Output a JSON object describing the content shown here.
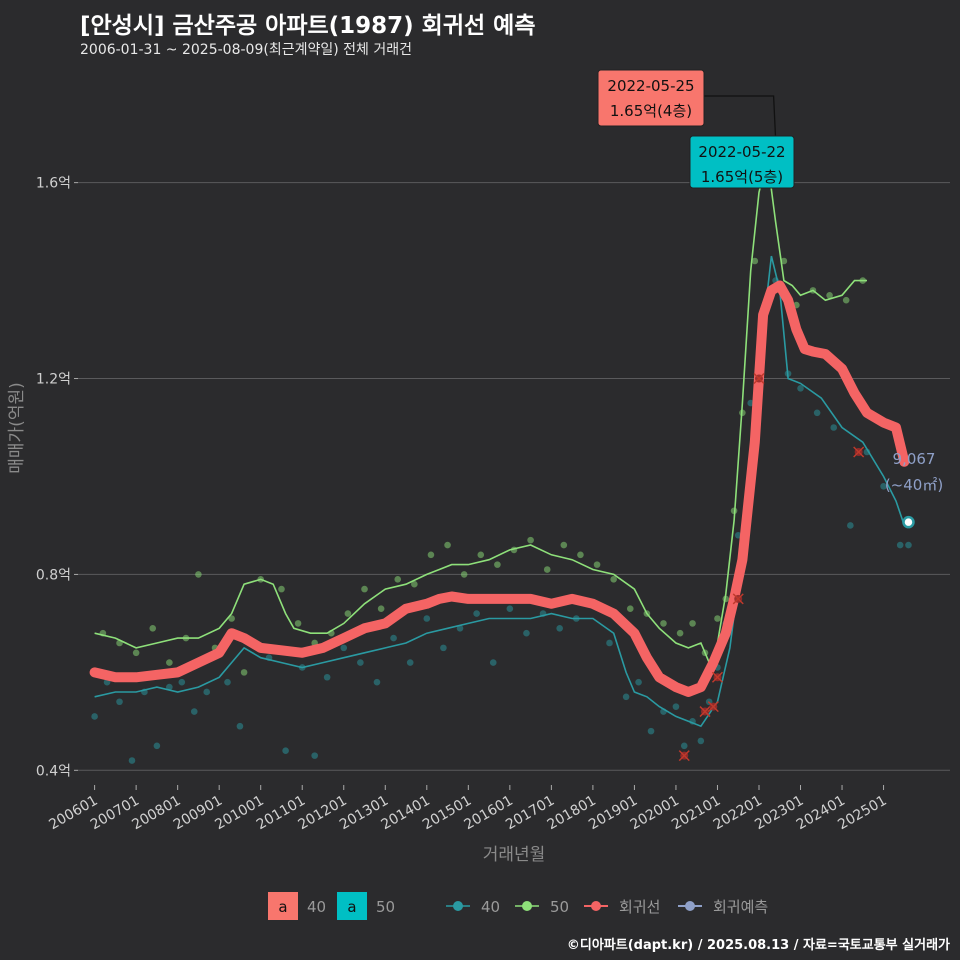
{
  "header": {
    "title": "[안성시] 금산주공 아파트(1987) 회귀선 예측",
    "subtitle": "2006-01-31 ~ 2025-08-09(최근계약일) 전체 거래건"
  },
  "caption": "©디아파트(dapt.kr) / 2025.08.13 / 자료=국토교통부 실거래가",
  "colors": {
    "background": "#2b2b2d",
    "grid": "#5a5a5c",
    "s40": "#2a9aa2",
    "s50": "#8ee07a",
    "regression": "#f46464",
    "forecast": "#8fa0c8",
    "ann40": "#f8766d",
    "ann50": "#00bfc4"
  },
  "chart_data": {
    "type": "line",
    "title": "[안성시] 금산주공 아파트(1987) 회귀선 예측",
    "xlabel": "거래년월",
    "ylabel": "매매가(억원)",
    "ylim": [
      0.37,
      1.83
    ],
    "x_range": [
      2005.6,
      2026.6
    ],
    "y_ticks": [
      0.4,
      0.8,
      1.2,
      1.6
    ],
    "y_tick_labels": [
      "0.4억",
      "0.8억",
      "1.2억",
      "1.6억"
    ],
    "x_tick_values": [
      2006,
      2007,
      2008,
      2009,
      2010,
      2011,
      2012,
      2013,
      2014,
      2015,
      2016,
      2017,
      2018,
      2019,
      2020,
      2021,
      2022,
      2023,
      2024,
      2025
    ],
    "x_tick_labels": [
      "200601",
      "200701",
      "200801",
      "200901",
      "201001",
      "201101",
      "201201",
      "201301",
      "201401",
      "201501",
      "201601",
      "201701",
      "201801",
      "201901",
      "202001",
      "202101",
      "202201",
      "202301",
      "202401",
      "202501"
    ],
    "series": [
      {
        "name": "50",
        "x": [
          2006.0,
          2006.5,
          2007.0,
          2007.5,
          2008.0,
          2008.5,
          2009.0,
          2009.3,
          2009.6,
          2010.0,
          2010.3,
          2010.6,
          2010.8,
          2011.2,
          2011.6,
          2012.0,
          2012.5,
          2013.0,
          2013.5,
          2014.0,
          2014.3,
          2014.6,
          2015.0,
          2015.5,
          2016.0,
          2016.5,
          2017.0,
          2017.5,
          2018.0,
          2018.5,
          2019.0,
          2019.3,
          2019.6,
          2020.0,
          2020.3,
          2020.6,
          2020.8,
          2021.0,
          2021.2,
          2021.4,
          2021.6,
          2021.8,
          2022.0,
          2022.2,
          2022.4,
          2022.6,
          2022.8,
          2023.0,
          2023.3,
          2023.6,
          2024.0,
          2024.3,
          2024.6
        ],
        "values": [
          0.68,
          0.67,
          0.65,
          0.66,
          0.67,
          0.67,
          0.69,
          0.72,
          0.78,
          0.79,
          0.78,
          0.72,
          0.69,
          0.68,
          0.68,
          0.7,
          0.74,
          0.77,
          0.78,
          0.8,
          0.81,
          0.82,
          0.82,
          0.83,
          0.85,
          0.86,
          0.84,
          0.83,
          0.81,
          0.8,
          0.77,
          0.72,
          0.69,
          0.66,
          0.65,
          0.66,
          0.62,
          0.66,
          0.76,
          0.91,
          1.15,
          1.42,
          1.58,
          1.65,
          1.52,
          1.4,
          1.39,
          1.37,
          1.38,
          1.36,
          1.37,
          1.4,
          1.4
        ]
      },
      {
        "name": "40",
        "x": [
          2006.0,
          2006.5,
          2007.0,
          2007.5,
          2008.0,
          2008.5,
          2009.0,
          2009.3,
          2009.6,
          2010.0,
          2010.5,
          2011.0,
          2011.5,
          2012.0,
          2012.5,
          2013.0,
          2013.5,
          2014.0,
          2014.5,
          2015.0,
          2015.5,
          2016.0,
          2016.5,
          2017.0,
          2017.5,
          2018.0,
          2018.5,
          2018.8,
          2019.0,
          2019.3,
          2019.6,
          2020.0,
          2020.3,
          2020.6,
          2021.0,
          2021.3,
          2021.6,
          2021.9,
          2022.1,
          2022.3,
          2022.5,
          2022.7,
          2023.0,
          2023.5,
          2024.0,
          2024.5,
          2025.0,
          2025.3,
          2025.5
        ],
        "values": [
          0.55,
          0.56,
          0.56,
          0.57,
          0.56,
          0.57,
          0.59,
          0.62,
          0.65,
          0.63,
          0.62,
          0.61,
          0.62,
          0.63,
          0.64,
          0.65,
          0.66,
          0.68,
          0.69,
          0.7,
          0.71,
          0.71,
          0.71,
          0.72,
          0.71,
          0.71,
          0.68,
          0.6,
          0.56,
          0.55,
          0.53,
          0.51,
          0.5,
          0.49,
          0.54,
          0.65,
          0.85,
          1.1,
          1.3,
          1.45,
          1.38,
          1.2,
          1.19,
          1.16,
          1.1,
          1.07,
          1.0,
          0.95,
          0.9
        ]
      },
      {
        "name": "회귀선",
        "x": [
          2006.0,
          2006.5,
          2007.0,
          2007.5,
          2008.0,
          2008.5,
          2009.0,
          2009.3,
          2009.6,
          2010.0,
          2010.5,
          2011.0,
          2011.5,
          2012.0,
          2012.5,
          2013.0,
          2013.5,
          2014.0,
          2014.3,
          2014.6,
          2015.0,
          2015.5,
          2016.0,
          2016.5,
          2017.0,
          2017.5,
          2018.0,
          2018.5,
          2019.0,
          2019.3,
          2019.6,
          2020.0,
          2020.3,
          2020.6,
          2020.9,
          2021.2,
          2021.4,
          2021.6,
          2021.9,
          2022.1,
          2022.3,
          2022.5,
          2022.7,
          2022.9,
          2023.1,
          2023.3,
          2023.6,
          2024.0,
          2024.3,
          2024.6,
          2025.0,
          2025.3,
          2025.5
        ],
        "values": [
          0.6,
          0.59,
          0.59,
          0.595,
          0.6,
          0.62,
          0.64,
          0.68,
          0.67,
          0.65,
          0.645,
          0.64,
          0.65,
          0.67,
          0.69,
          0.7,
          0.73,
          0.74,
          0.75,
          0.755,
          0.75,
          0.75,
          0.75,
          0.75,
          0.74,
          0.75,
          0.74,
          0.72,
          0.68,
          0.63,
          0.59,
          0.57,
          0.56,
          0.57,
          0.62,
          0.68,
          0.75,
          0.83,
          1.07,
          1.33,
          1.38,
          1.39,
          1.36,
          1.3,
          1.26,
          1.255,
          1.25,
          1.22,
          1.17,
          1.13,
          1.11,
          1.1,
          1.03
        ]
      },
      {
        "name": "회귀예측",
        "x": [
          2025.6
        ],
        "values": [
          0.9067
        ]
      }
    ],
    "scatter_points_40": [
      [
        2006.0,
        0.51
      ],
      [
        2006.3,
        0.58
      ],
      [
        2006.6,
        0.54
      ],
      [
        2006.9,
        0.42
      ],
      [
        2007.2,
        0.56
      ],
      [
        2007.5,
        0.45
      ],
      [
        2007.8,
        0.57
      ],
      [
        2008.1,
        0.58
      ],
      [
        2008.4,
        0.52
      ],
      [
        2008.7,
        0.56
      ],
      [
        2009.2,
        0.58
      ],
      [
        2009.5,
        0.49
      ],
      [
        2010.2,
        0.63
      ],
      [
        2010.6,
        0.44
      ],
      [
        2011.0,
        0.61
      ],
      [
        2011.3,
        0.43
      ],
      [
        2011.6,
        0.59
      ],
      [
        2012.0,
        0.65
      ],
      [
        2012.4,
        0.62
      ],
      [
        2012.8,
        0.58
      ],
      [
        2013.2,
        0.67
      ],
      [
        2013.6,
        0.62
      ],
      [
        2014.0,
        0.71
      ],
      [
        2014.4,
        0.65
      ],
      [
        2014.8,
        0.69
      ],
      [
        2015.2,
        0.72
      ],
      [
        2015.6,
        0.62
      ],
      [
        2016.0,
        0.73
      ],
      [
        2016.4,
        0.68
      ],
      [
        2016.8,
        0.72
      ],
      [
        2017.2,
        0.69
      ],
      [
        2017.6,
        0.71
      ],
      [
        2018.0,
        0.74
      ],
      [
        2018.4,
        0.66
      ],
      [
        2018.8,
        0.55
      ],
      [
        2019.1,
        0.58
      ],
      [
        2019.4,
        0.48
      ],
      [
        2019.7,
        0.52
      ],
      [
        2020.0,
        0.53
      ],
      [
        2020.2,
        0.45
      ],
      [
        2020.4,
        0.5
      ],
      [
        2020.6,
        0.46
      ],
      [
        2020.8,
        0.54
      ],
      [
        2021.0,
        0.61
      ],
      [
        2021.2,
        0.7
      ],
      [
        2021.5,
        0.88
      ],
      [
        2021.8,
        1.15
      ],
      [
        2022.1,
        1.32
      ],
      [
        2022.4,
        1.4
      ],
      [
        2022.7,
        1.21
      ],
      [
        2023.0,
        1.18
      ],
      [
        2023.4,
        1.13
      ],
      [
        2023.8,
        1.1
      ],
      [
        2024.2,
        0.9
      ],
      [
        2024.6,
        1.05
      ],
      [
        2025.0,
        0.98
      ],
      [
        2025.4,
        0.86
      ],
      [
        2025.6,
        0.86
      ]
    ],
    "scatter_points_50": [
      [
        2006.2,
        0.68
      ],
      [
        2006.6,
        0.66
      ],
      [
        2007.0,
        0.64
      ],
      [
        2007.4,
        0.69
      ],
      [
        2007.8,
        0.62
      ],
      [
        2008.2,
        0.67
      ],
      [
        2008.5,
        0.8
      ],
      [
        2008.9,
        0.65
      ],
      [
        2009.3,
        0.71
      ],
      [
        2009.6,
        0.6
      ],
      [
        2010.0,
        0.79
      ],
      [
        2010.5,
        0.77
      ],
      [
        2010.9,
        0.7
      ],
      [
        2011.3,
        0.66
      ],
      [
        2011.7,
        0.68
      ],
      [
        2012.1,
        0.72
      ],
      [
        2012.5,
        0.77
      ],
      [
        2012.9,
        0.73
      ],
      [
        2013.3,
        0.79
      ],
      [
        2013.7,
        0.78
      ],
      [
        2014.1,
        0.84
      ],
      [
        2014.5,
        0.86
      ],
      [
        2014.9,
        0.8
      ],
      [
        2015.3,
        0.84
      ],
      [
        2015.7,
        0.82
      ],
      [
        2016.1,
        0.85
      ],
      [
        2016.5,
        0.87
      ],
      [
        2016.9,
        0.81
      ],
      [
        2017.3,
        0.86
      ],
      [
        2017.7,
        0.84
      ],
      [
        2018.1,
        0.82
      ],
      [
        2018.5,
        0.79
      ],
      [
        2018.9,
        0.73
      ],
      [
        2019.3,
        0.72
      ],
      [
        2019.7,
        0.7
      ],
      [
        2020.1,
        0.68
      ],
      [
        2020.4,
        0.7
      ],
      [
        2020.7,
        0.64
      ],
      [
        2021.0,
        0.71
      ],
      [
        2021.2,
        0.75
      ],
      [
        2021.4,
        0.93
      ],
      [
        2021.6,
        1.13
      ],
      [
        2021.9,
        1.44
      ],
      [
        2022.2,
        1.61
      ],
      [
        2022.6,
        1.44
      ],
      [
        2022.9,
        1.35
      ],
      [
        2023.3,
        1.38
      ],
      [
        2023.7,
        1.37
      ],
      [
        2024.1,
        1.36
      ],
      [
        2024.5,
        1.4
      ]
    ],
    "cancelled_points": [
      [
        2020.2,
        0.43
      ],
      [
        2020.7,
        0.52
      ],
      [
        2020.9,
        0.53
      ],
      [
        2021.0,
        0.59
      ],
      [
        2021.5,
        0.75
      ],
      [
        2022.0,
        1.2
      ],
      [
        2024.4,
        1.05
      ]
    ],
    "annotations": [
      {
        "date": "2022-05-25",
        "price": "1.65억(4층)",
        "x": 2022.4,
        "y": 1.65,
        "type": "40"
      },
      {
        "date": "2022-05-22",
        "price": "1.65억(5층)",
        "x": 2022.39,
        "y": 1.58,
        "type": "50"
      }
    ],
    "end_label": {
      "value": "9,067",
      "area": "(~40㎡)"
    },
    "legend": {
      "fill_items": [
        "40",
        "50"
      ],
      "line_items": [
        "40",
        "50",
        "회귀선",
        "회귀예측"
      ],
      "key_letter": "a"
    }
  }
}
